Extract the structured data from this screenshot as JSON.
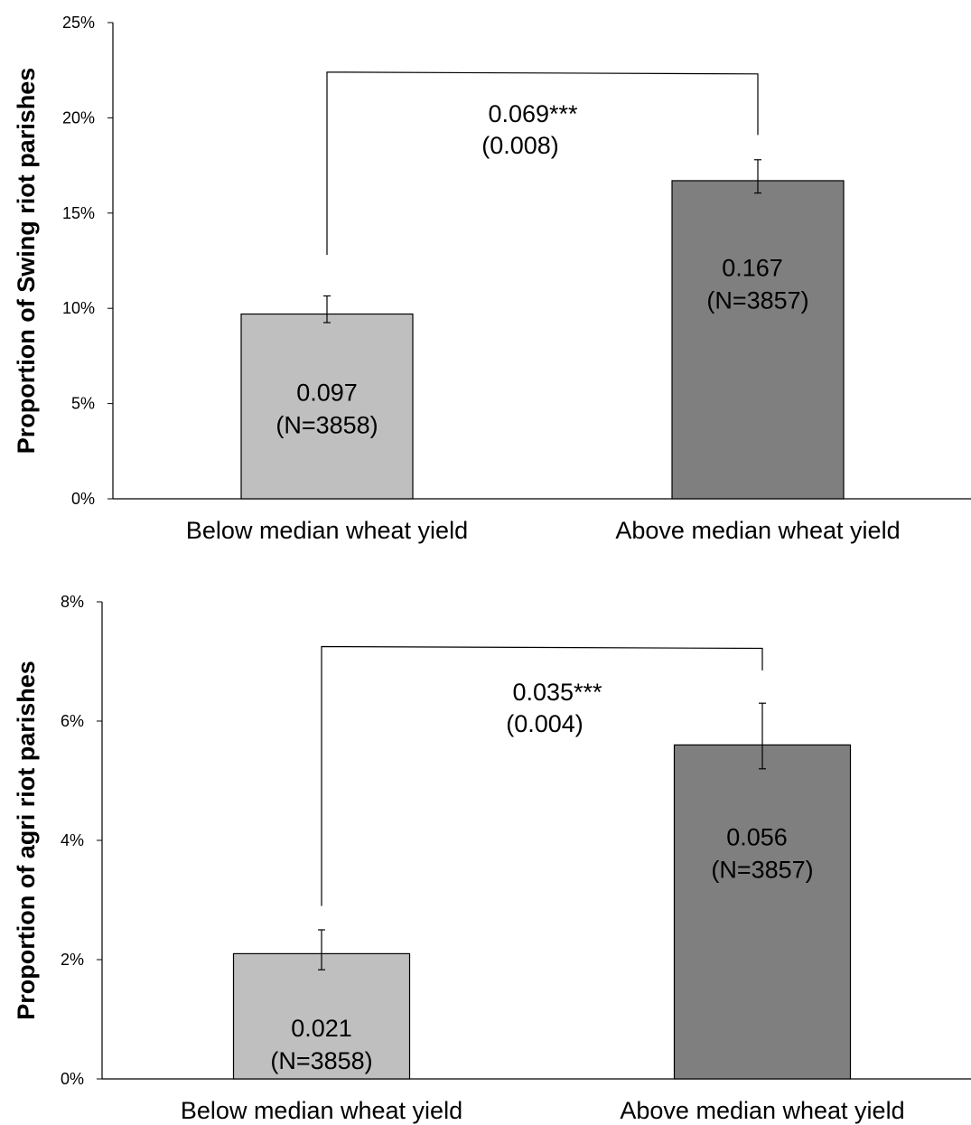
{
  "chart_data": [
    {
      "type": "bar",
      "ylabel": "Proportion of Swing riot parishes",
      "ylim": [
        0,
        0.25
      ],
      "yticks": [
        0,
        0.05,
        0.1,
        0.15,
        0.2,
        0.25
      ],
      "ytick_labels": [
        "0%",
        "5%",
        "10%",
        "15%",
        "20%",
        "25%"
      ],
      "categories": [
        "Below median wheat yield",
        "Above median wheat yield"
      ],
      "values": [
        0.097,
        0.167
      ],
      "error_low": [
        0.0925,
        0.1605
      ],
      "error_high": [
        0.1065,
        0.178
      ],
      "bar_labels": [
        "0.097",
        "0.167"
      ],
      "n_labels": [
        "(N=3858)",
        "(N=3857)"
      ],
      "bar_colors": [
        "#bfbfbf",
        "#7f7f7f"
      ],
      "difference": {
        "label": "0.069***",
        "se": "(0.008)",
        "bracket_level": 0.224,
        "left_end": 0.128,
        "right_end": 0.191
      }
    },
    {
      "type": "bar",
      "ylabel": "Proportion of agri riot parishes",
      "ylim": [
        0,
        0.08
      ],
      "yticks": [
        0,
        0.02,
        0.04,
        0.06,
        0.08
      ],
      "ytick_labels": [
        "0%",
        "2%",
        "4%",
        "6%",
        "8%"
      ],
      "categories": [
        "Below median wheat yield",
        "Above median wheat yield"
      ],
      "values": [
        0.021,
        0.056
      ],
      "error_low": [
        0.0183,
        0.052
      ],
      "error_high": [
        0.025,
        0.063
      ],
      "bar_labels": [
        "0.021",
        "0.056"
      ],
      "n_labels": [
        "(N=3858)",
        "(N=3857)"
      ],
      "bar_colors": [
        "#bfbfbf",
        "#7f7f7f"
      ],
      "difference": {
        "label": "0.035***",
        "se": "(0.004)",
        "bracket_level": 0.0725,
        "left_end": 0.029,
        "right_end": 0.0685
      }
    }
  ]
}
